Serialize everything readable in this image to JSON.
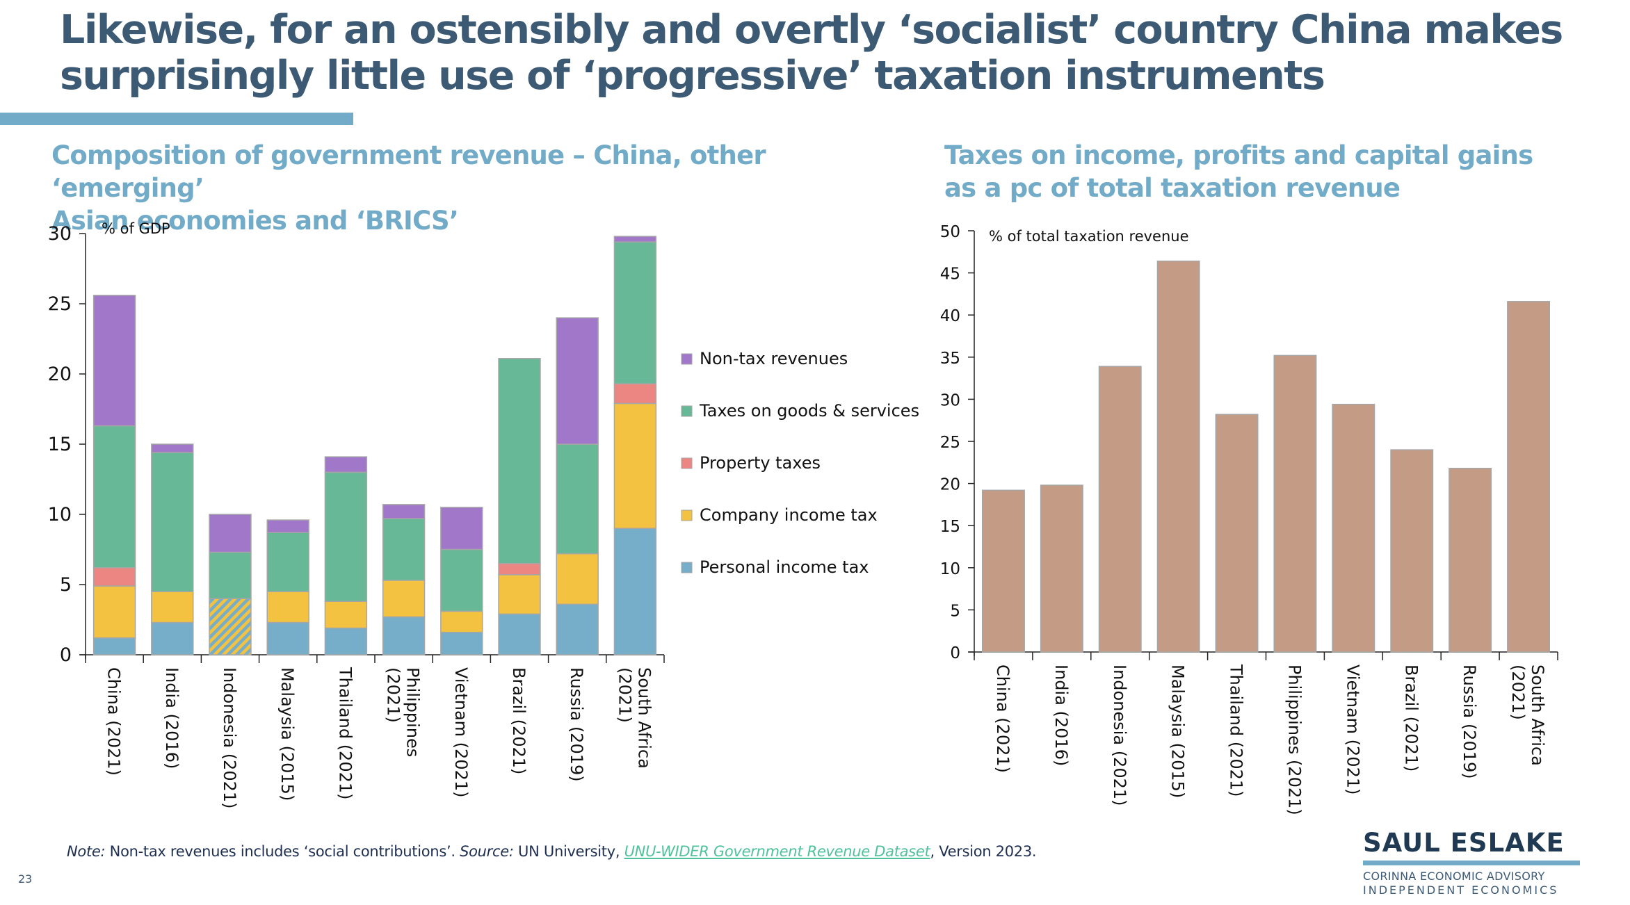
{
  "slide": {
    "title": "Likewise, for an ostensibly and overtly ‘socialist’ country China makes surprisingly little use of ‘progressive’ taxation instruments",
    "title_line1": "Likewise, for an ostensibly and overtly ‘socialist’ country China makes",
    "title_line2": "surprisingly little use of ‘progressive’ taxation instruments",
    "page_number": "23"
  },
  "footnote": {
    "note_label": "Note:",
    "note_text": " Non-tax revenues includes ‘social contributions’. ",
    "source_label": "Source:",
    "source_text": " UN University, ",
    "link_text": "UNU-WIDER Government Revenue Dataset",
    "tail_text": ", Version 2023."
  },
  "logo": {
    "brand": "SAUL ESLAKE",
    "line1": "CORINNA ECONOMIC ADVISORY",
    "line2": "INDEPENDENT ECONOMICS"
  },
  "colors": {
    "title": "#3d5a75",
    "subtitle": "#72abc8",
    "non_tax": "#a178c9",
    "goods_services": "#67b897",
    "property": "#ec8683",
    "company": "#f2c240",
    "personal": "#76adc9",
    "right_bars": "#c49b84",
    "link": "#4fc29a"
  },
  "chart_data": [
    {
      "type": "bar",
      "stacked": true,
      "title": "Composition of government revenue – China, other ‘emerging’ Asian economies and ‘BRICS’",
      "title_line1": "Composition of government revenue – China, other ‘emerging’",
      "title_line2": "Asian economies and ‘BRICS’",
      "ylabel": "% of GDP",
      "xlabel": "",
      "ylim": [
        0,
        30
      ],
      "yticks": [
        0,
        5,
        10,
        15,
        20,
        25,
        30
      ],
      "grid": false,
      "legend_position": "right",
      "categories": [
        "China (2021)",
        "India (2016)",
        "Indonesia (2021)",
        "Malaysia (2015)",
        "Thailand (2021)",
        "Philippines (2021)",
        "Vietnam (2021)",
        "Brazil (2021)",
        "Russia (2019)",
        "South Africa (2021)"
      ],
      "category_lines": [
        [
          "China (2021)"
        ],
        [
          "India (2016)"
        ],
        [
          "Indonesia (2021)"
        ],
        [
          "Malaysia (2015)"
        ],
        [
          "Thailand (2021)"
        ],
        [
          "Philippines",
          "(2021)"
        ],
        [
          "Vietnam (2021)"
        ],
        [
          "Brazil (2021)"
        ],
        [
          "Russia (2019)"
        ],
        [
          "South Africa",
          "(2021)"
        ]
      ],
      "series": [
        {
          "name": "Personal income tax",
          "key": "personal",
          "values": [
            1.2,
            2.3,
            0,
            2.3,
            1.9,
            2.7,
            1.6,
            2.9,
            3.6,
            9.0
          ]
        },
        {
          "name": "Company income tax",
          "key": "company",
          "values": [
            3.7,
            2.2,
            0,
            2.2,
            1.9,
            2.6,
            1.5,
            2.8,
            3.6,
            8.9
          ]
        },
        {
          "name": "Income taxes (not split)",
          "key": "combined",
          "values": [
            0,
            0,
            4.0,
            0,
            0,
            0,
            0,
            0,
            0,
            0
          ],
          "in_legend": false
        },
        {
          "name": "Property taxes",
          "key": "property",
          "values": [
            1.3,
            0,
            0,
            0,
            0,
            0,
            0,
            0.8,
            0,
            1.4
          ]
        },
        {
          "name": "Taxes on goods & services",
          "key": "goods_services",
          "values": [
            10.1,
            9.9,
            3.3,
            4.2,
            9.2,
            4.4,
            4.4,
            14.6,
            7.8,
            10.1
          ]
        },
        {
          "name": "Non-tax revenues",
          "key": "non_tax",
          "values": [
            9.3,
            0.6,
            2.7,
            0.9,
            1.1,
            1.0,
            3.0,
            0,
            9.0,
            0.4
          ]
        }
      ],
      "legend": [
        "Non-tax revenues",
        "Taxes on goods & services",
        "Property taxes",
        "Company income tax",
        "Personal income tax"
      ],
      "legend_keys": [
        "non_tax",
        "goods_services",
        "property",
        "company",
        "personal"
      ]
    },
    {
      "type": "bar",
      "title": "Taxes on income, profits and capital gains as a pc of total taxation revenue",
      "title_line1": "Taxes on income, profits and capital gains",
      "title_line2": "as a pc of total taxation revenue",
      "ylabel": "% of total taxation revenue",
      "xlabel": "",
      "ylim": [
        0,
        50
      ],
      "yticks": [
        0,
        5,
        10,
        15,
        20,
        25,
        30,
        35,
        40,
        45,
        50
      ],
      "grid": false,
      "categories": [
        "China (2021)",
        "India (2016)",
        "Indonesia (2021)",
        "Malaysia (2015)",
        "Thailand (2021)",
        "Philippines (2021)",
        "Vietnam (2021)",
        "Brazil (2021)",
        "Russia (2019)",
        "South Africa (2021)"
      ],
      "category_lines": [
        [
          "China (2021)"
        ],
        [
          "India (2016)"
        ],
        [
          "Indonesia (2021)"
        ],
        [
          "Malaysia (2015)"
        ],
        [
          "Thailand (2021)"
        ],
        [
          "Philippines (2021)"
        ],
        [
          "Vietnam (2021)"
        ],
        [
          "Brazil (2021)"
        ],
        [
          "Russia (2019)"
        ],
        [
          "South Africa",
          "(2021)"
        ]
      ],
      "values": [
        19.2,
        19.8,
        33.9,
        46.4,
        28.2,
        35.2,
        29.4,
        24.0,
        21.8,
        41.6
      ]
    }
  ]
}
